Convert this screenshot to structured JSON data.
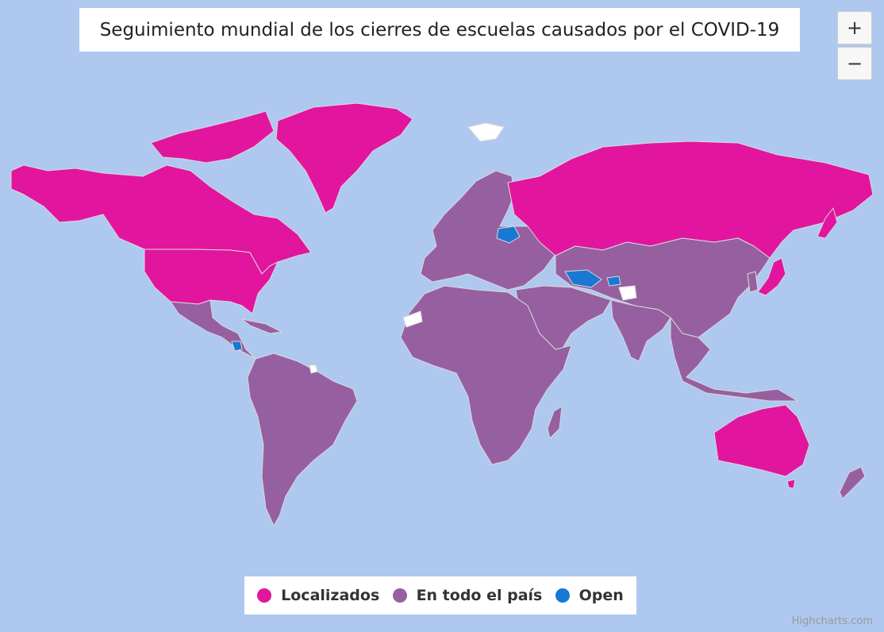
{
  "title": "Seguimiento mundial de los cierres de escuelas causados por el COVID-19",
  "zoom": {
    "in_label": "+",
    "out_label": "−"
  },
  "colors": {
    "ocean": "#aec8f0",
    "border": "#d9d9d9",
    "nodata": "#ffffff",
    "localizados": "#e2159f",
    "nacional": "#9660a0",
    "open": "#1878d2"
  },
  "legend": [
    {
      "label": "Localizados",
      "color": "#e2159f"
    },
    {
      "label": "En todo el país",
      "color": "#9660a0"
    },
    {
      "label": "Open",
      "color": "#1878d2"
    }
  ],
  "status": {
    "localizados": [
      "Canada",
      "United States",
      "Greenland",
      "Russia",
      "Australia"
    ],
    "open": [
      "Belarus",
      "Turkmenistan",
      "Tajikistan",
      "Nicaragua"
    ],
    "nodata": [
      "Western Sahara",
      "Svalbard",
      "French Guiana",
      "Jammu and Kashmir"
    ]
  },
  "credits": "Highcharts.com"
}
